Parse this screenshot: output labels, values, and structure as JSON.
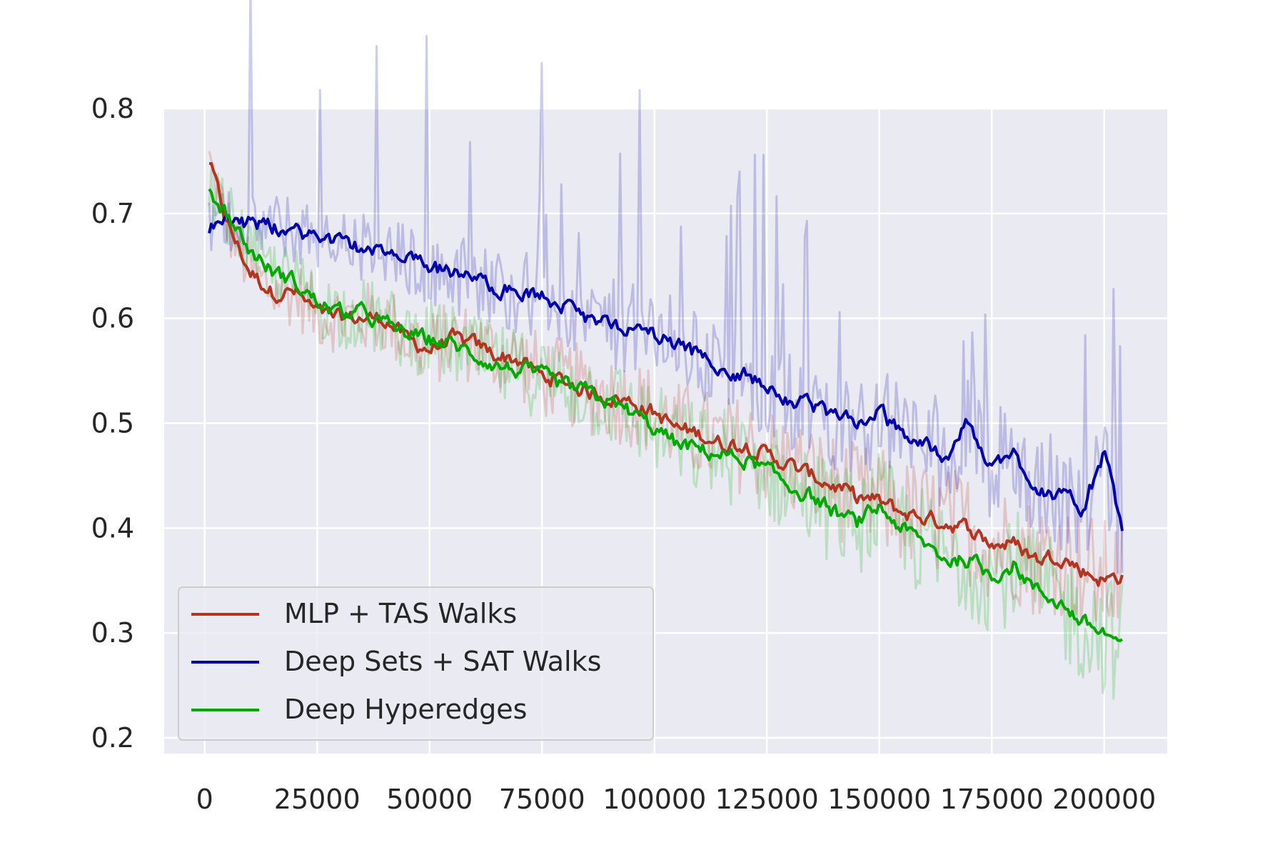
{
  "chart_data": {
    "type": "line",
    "title": "",
    "xlabel": "",
    "ylabel": "",
    "xlim": [
      -9000,
      214000
    ],
    "ylim": [
      0.185,
      0.8
    ],
    "x_ticks": [
      0,
      25000,
      50000,
      75000,
      100000,
      125000,
      150000,
      175000,
      200000
    ],
    "x_tick_labels": [
      "0",
      "25000",
      "50000",
      "75000",
      "100000",
      "125000",
      "150000",
      "175000",
      "200000"
    ],
    "y_ticks": [
      0.2,
      0.3,
      0.4,
      0.5,
      0.6,
      0.7,
      0.8
    ],
    "y_tick_labels": [
      "0.2",
      "0.3",
      "0.4",
      "0.5",
      "0.6",
      "0.7",
      "0.8"
    ],
    "grid": true,
    "legend_position": "lower-left",
    "background_color": "#eaeaf2",
    "grid_color": "#ffffff",
    "series": [
      {
        "name": "MLP + TAS Walks",
        "color": "#b5341f",
        "x": [
          1000,
          5000,
          10000,
          15000,
          20000,
          25000,
          30000,
          35000,
          40000,
          45000,
          50000,
          55000,
          60000,
          65000,
          70000,
          75000,
          80000,
          85000,
          90000,
          95000,
          100000,
          105000,
          110000,
          115000,
          120000,
          125000,
          130000,
          135000,
          140000,
          145000,
          150000,
          155000,
          160000,
          165000,
          170000,
          175000,
          180000,
          185000,
          190000,
          195000,
          200000,
          204000
        ],
        "y": [
          0.75,
          0.69,
          0.645,
          0.625,
          0.625,
          0.605,
          0.6,
          0.6,
          0.6,
          0.58,
          0.57,
          0.58,
          0.575,
          0.565,
          0.56,
          0.545,
          0.54,
          0.53,
          0.525,
          0.52,
          0.51,
          0.495,
          0.49,
          0.48,
          0.48,
          0.47,
          0.46,
          0.45,
          0.44,
          0.43,
          0.425,
          0.415,
          0.41,
          0.405,
          0.4,
          0.385,
          0.385,
          0.37,
          0.375,
          0.36,
          0.35,
          0.355
        ]
      },
      {
        "name": "Deep Sets + SAT Walks",
        "color": "#0000b0",
        "x": [
          1000,
          5000,
          10000,
          15000,
          20000,
          25000,
          30000,
          35000,
          40000,
          45000,
          50000,
          55000,
          60000,
          65000,
          70000,
          75000,
          80000,
          85000,
          90000,
          95000,
          100000,
          105000,
          110000,
          115000,
          120000,
          125000,
          130000,
          135000,
          140000,
          145000,
          150000,
          155000,
          160000,
          165000,
          170000,
          175000,
          180000,
          185000,
          190000,
          195000,
          200000,
          204000
        ],
        "y": [
          0.685,
          0.695,
          0.69,
          0.687,
          0.683,
          0.678,
          0.672,
          0.667,
          0.66,
          0.655,
          0.65,
          0.643,
          0.637,
          0.63,
          0.625,
          0.62,
          0.61,
          0.6,
          0.595,
          0.59,
          0.585,
          0.575,
          0.565,
          0.555,
          0.545,
          0.535,
          0.525,
          0.515,
          0.505,
          0.5,
          0.51,
          0.49,
          0.48,
          0.47,
          0.5,
          0.46,
          0.47,
          0.44,
          0.43,
          0.42,
          0.47,
          0.4
        ]
      },
      {
        "name": "Deep Hyperedges",
        "color": "#00aa00",
        "x": [
          1000,
          5000,
          10000,
          15000,
          20000,
          25000,
          30000,
          35000,
          40000,
          45000,
          50000,
          55000,
          60000,
          65000,
          70000,
          75000,
          80000,
          85000,
          90000,
          95000,
          100000,
          105000,
          110000,
          115000,
          120000,
          125000,
          130000,
          135000,
          140000,
          145000,
          150000,
          155000,
          160000,
          165000,
          170000,
          175000,
          180000,
          185000,
          190000,
          195000,
          200000,
          204000
        ],
        "y": [
          0.72,
          0.7,
          0.665,
          0.645,
          0.635,
          0.615,
          0.605,
          0.605,
          0.595,
          0.585,
          0.58,
          0.575,
          0.565,
          0.555,
          0.55,
          0.545,
          0.535,
          0.53,
          0.52,
          0.51,
          0.495,
          0.48,
          0.475,
          0.47,
          0.465,
          0.455,
          0.44,
          0.43,
          0.415,
          0.405,
          0.42,
          0.4,
          0.385,
          0.37,
          0.37,
          0.355,
          0.365,
          0.34,
          0.33,
          0.31,
          0.3,
          0.29
        ]
      }
    ]
  }
}
